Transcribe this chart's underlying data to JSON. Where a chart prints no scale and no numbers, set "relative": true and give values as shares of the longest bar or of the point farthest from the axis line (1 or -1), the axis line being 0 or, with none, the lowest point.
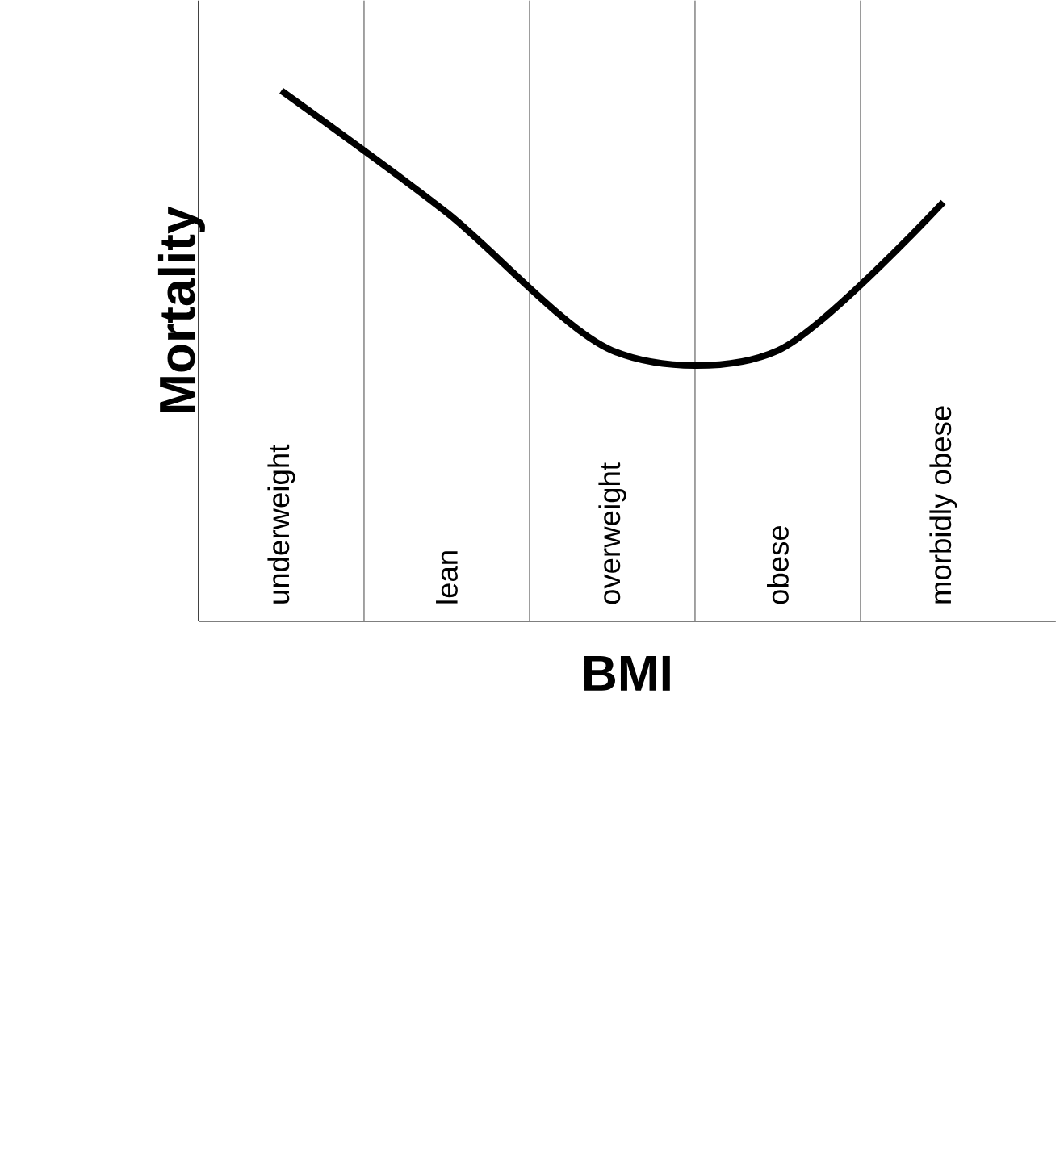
{
  "chart_data": {
    "type": "line",
    "relative": true,
    "xlabel": "BMI",
    "ylabel": "Mortality",
    "color": "#000000",
    "categories": [
      "underweight",
      "lean",
      "overweight",
      "obese",
      "morbidly obese"
    ],
    "values": [
      1,
      0.77,
      0.51,
      0.51,
      0.79
    ]
  }
}
